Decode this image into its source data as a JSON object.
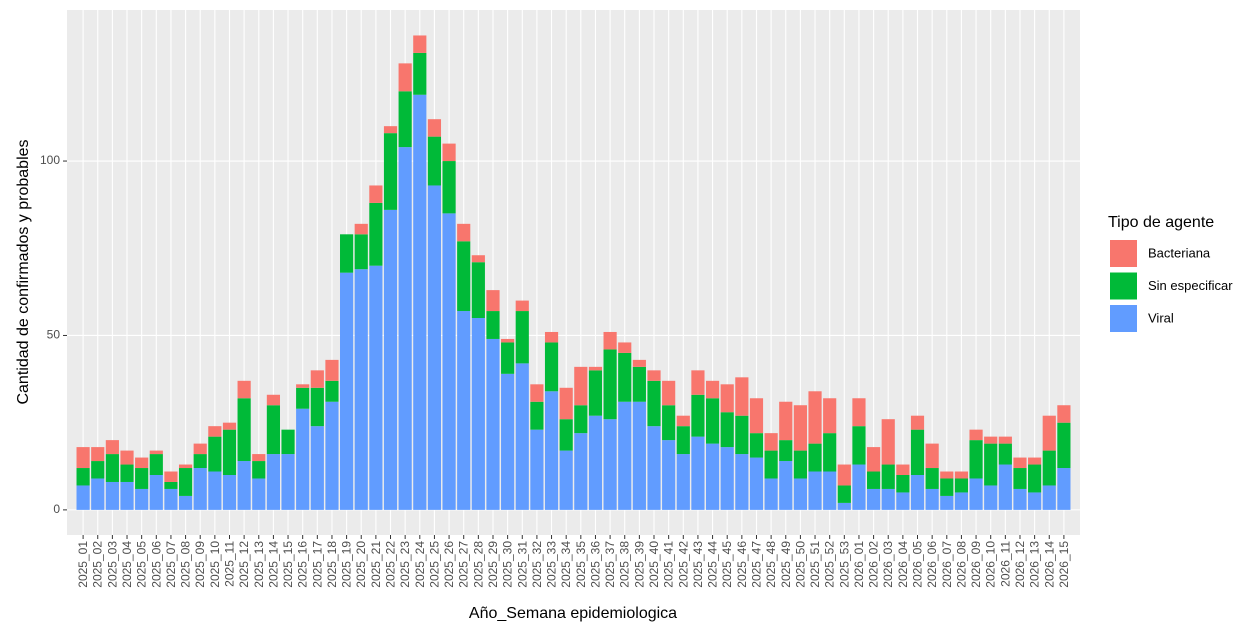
{
  "chart_data": {
    "type": "stacked-bar",
    "x_label": "Año_Semana epidemiologica",
    "y_label": "Cantidad de confirmados y probables",
    "legend_title": "Tipo de agente",
    "legend_position": "right",
    "grid": true,
    "categories": [
      "2025_01",
      "2025_02",
      "2025_03",
      "2025_04",
      "2025_05",
      "2025_06",
      "2025_07",
      "2025_08",
      "2025_09",
      "2025_10",
      "2025_11",
      "2025_12",
      "2025_13",
      "2025_14",
      "2025_15",
      "2025_16",
      "2025_17",
      "2025_18",
      "2025_19",
      "2025_20",
      "2025_21",
      "2025_22",
      "2025_23",
      "2025_24",
      "2025_25",
      "2025_26",
      "2025_27",
      "2025_28",
      "2025_29",
      "2025_30",
      "2025_31",
      "2025_32",
      "2025_33",
      "2025_34",
      "2025_35",
      "2025_36",
      "2025_37",
      "2025_38",
      "2025_39",
      "2025_40",
      "2025_41",
      "2025_42",
      "2025_43",
      "2025_44",
      "2025_45",
      "2025_46",
      "2025_47",
      "2025_48",
      "2025_49",
      "2025_50",
      "2025_51",
      "2025_52",
      "2025_53",
      "2026_01",
      "2026_02",
      "2026_03",
      "2026_04",
      "2026_05",
      "2026_06",
      "2026_07",
      "2026_08",
      "2026_09",
      "2026_10",
      "2026_11",
      "2026_12",
      "2026_13",
      "2026_14",
      "2026_15"
    ],
    "series": [
      {
        "name": "Bacteriana",
        "color": "#f8766d",
        "values": [
          6,
          4,
          4,
          4,
          3,
          1,
          3,
          1,
          3,
          3,
          2,
          5,
          2,
          3,
          0,
          1,
          5,
          6,
          0,
          3,
          5,
          2,
          8,
          5,
          5,
          5,
          5,
          2,
          6,
          1,
          3,
          5,
          3,
          9,
          11,
          1,
          5,
          3,
          2,
          3,
          7,
          3,
          7,
          5,
          8,
          11,
          10,
          5,
          11,
          13,
          15,
          10,
          6,
          8,
          7,
          13,
          3,
          4,
          7,
          2,
          2,
          3,
          2,
          2,
          3,
          2,
          10,
          5
        ]
      },
      {
        "name": "Sin especificar",
        "color": "#00ba38",
        "values": [
          5,
          5,
          8,
          5,
          6,
          6,
          2,
          8,
          4,
          10,
          13,
          18,
          5,
          14,
          7,
          6,
          11,
          6,
          11,
          10,
          18,
          22,
          16,
          12,
          14,
          15,
          20,
          16,
          8,
          9,
          15,
          8,
          14,
          9,
          8,
          13,
          20,
          14,
          10,
          13,
          10,
          8,
          12,
          13,
          10,
          11,
          7,
          8,
          6,
          8,
          8,
          11,
          5,
          11,
          5,
          7,
          5,
          13,
          6,
          5,
          4,
          11,
          12,
          6,
          6,
          8,
          10,
          13
        ]
      },
      {
        "name": "Viral",
        "color": "#619cff",
        "values": [
          7,
          9,
          8,
          8,
          6,
          10,
          6,
          4,
          12,
          11,
          10,
          14,
          9,
          16,
          16,
          29,
          24,
          31,
          68,
          69,
          70,
          86,
          104,
          119,
          93,
          85,
          57,
          55,
          49,
          39,
          42,
          23,
          34,
          17,
          22,
          27,
          26,
          31,
          31,
          24,
          20,
          16,
          21,
          19,
          18,
          16,
          15,
          9,
          14,
          9,
          11,
          11,
          2,
          13,
          6,
          6,
          5,
          10,
          6,
          4,
          5,
          9,
          7,
          13,
          6,
          5,
          7,
          12
        ]
      }
    ],
    "ylim": [
      -7.2,
      143.3
    ],
    "yticks": [
      0,
      50,
      100
    ]
  }
}
